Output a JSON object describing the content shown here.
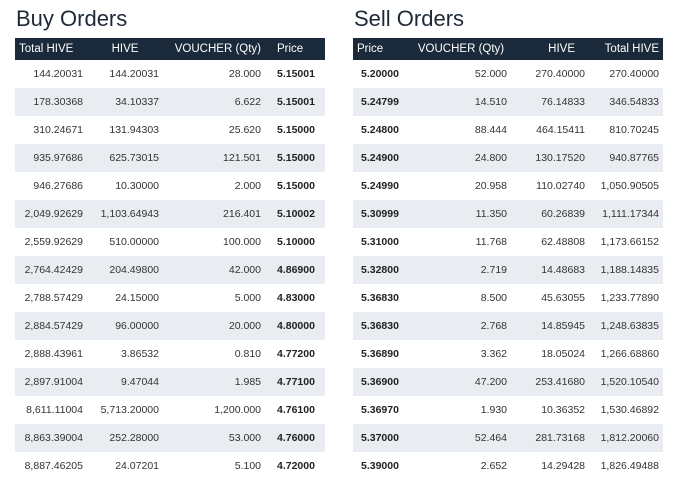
{
  "buy": {
    "title": "Buy Orders",
    "columns": [
      "Total HIVE",
      "HIVE",
      "VOUCHER (Qty)",
      "Price"
    ],
    "rows": [
      [
        "144.20031",
        "144.20031",
        "28.000",
        "5.15001"
      ],
      [
        "178.30368",
        "34.10337",
        "6.622",
        "5.15001"
      ],
      [
        "310.24671",
        "131.94303",
        "25.620",
        "5.15000"
      ],
      [
        "935.97686",
        "625.73015",
        "121.501",
        "5.15000"
      ],
      [
        "946.27686",
        "10.30000",
        "2.000",
        "5.15000"
      ],
      [
        "2,049.92629",
        "1,103.64943",
        "216.401",
        "5.10002"
      ],
      [
        "2,559.92629",
        "510.00000",
        "100.000",
        "5.10000"
      ],
      [
        "2,764.42429",
        "204.49800",
        "42.000",
        "4.86900"
      ],
      [
        "2,788.57429",
        "24.15000",
        "5.000",
        "4.83000"
      ],
      [
        "2,884.57429",
        "96.00000",
        "20.000",
        "4.80000"
      ],
      [
        "2,888.43961",
        "3.86532",
        "0.810",
        "4.77200"
      ],
      [
        "2,897.91004",
        "9.47044",
        "1.985",
        "4.77100"
      ],
      [
        "8,611.11004",
        "5,713.20000",
        "1,200.000",
        "4.76100"
      ],
      [
        "8,863.39004",
        "252.28000",
        "53.000",
        "4.76000"
      ],
      [
        "8,887.46205",
        "24.07201",
        "5.100",
        "4.72000"
      ]
    ]
  },
  "sell": {
    "title": "Sell Orders",
    "columns": [
      "Price",
      "VOUCHER (Qty)",
      "HIVE",
      "Total HIVE"
    ],
    "rows": [
      [
        "5.20000",
        "52.000",
        "270.40000",
        "270.40000"
      ],
      [
        "5.24799",
        "14.510",
        "76.14833",
        "346.54833"
      ],
      [
        "5.24800",
        "88.444",
        "464.15411",
        "810.70245"
      ],
      [
        "5.24900",
        "24.800",
        "130.17520",
        "940.87765"
      ],
      [
        "5.24990",
        "20.958",
        "110.02740",
        "1,050.90505"
      ],
      [
        "5.30999",
        "11.350",
        "60.26839",
        "1,111.17344"
      ],
      [
        "5.31000",
        "11.768",
        "62.48808",
        "1,173.66152"
      ],
      [
        "5.32800",
        "2.719",
        "14.48683",
        "1,188.14835"
      ],
      [
        "5.36830",
        "8.500",
        "45.63055",
        "1,233.77890"
      ],
      [
        "5.36830",
        "2.768",
        "14.85945",
        "1,248.63835"
      ],
      [
        "5.36890",
        "3.362",
        "18.05024",
        "1,266.68860"
      ],
      [
        "5.36900",
        "47.200",
        "253.41680",
        "1,520.10540"
      ],
      [
        "5.36970",
        "1.930",
        "10.36352",
        "1,530.46892"
      ],
      [
        "5.37000",
        "52.464",
        "281.73168",
        "1,812.20060"
      ],
      [
        "5.39000",
        "2.652",
        "14.29428",
        "1,826.49488"
      ]
    ]
  }
}
